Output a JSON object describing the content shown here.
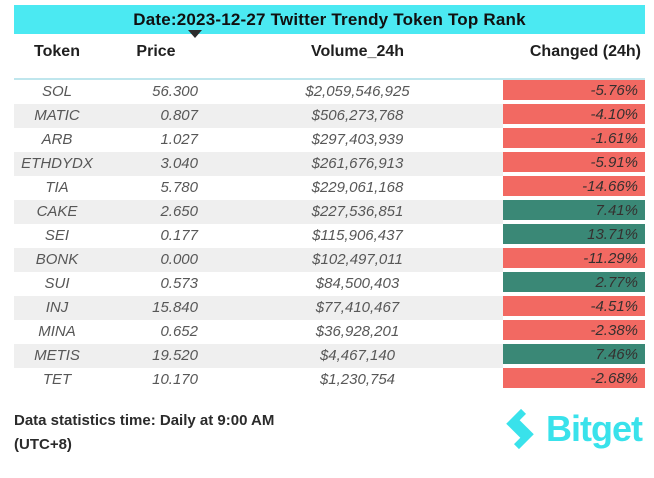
{
  "title": "Date:2023-12-27 Twitter Trendy Token Top Rank",
  "chart_data": {
    "type": "table",
    "title": "Date:2023-12-27 Twitter Trendy Token Top Rank",
    "columns": [
      "Token",
      "Price",
      "Volume_24h",
      "Changed (24h)"
    ],
    "sort": {
      "column": "Price",
      "direction": "descending",
      "icon": "▼"
    },
    "rows": [
      {
        "token": "SOL",
        "price": "56.300",
        "volume": "$2,059,546,925",
        "change": "-5.76%",
        "direction": "down"
      },
      {
        "token": "MATIC",
        "price": "0.807",
        "volume": "$506,273,768",
        "change": "-4.10%",
        "direction": "down"
      },
      {
        "token": "ARB",
        "price": "1.027",
        "volume": "$297,403,939",
        "change": "-1.61%",
        "direction": "down"
      },
      {
        "token": "ETHDYDX",
        "price": "3.040",
        "volume": "$261,676,913",
        "change": "-5.91%",
        "direction": "down"
      },
      {
        "token": "TIA",
        "price": "5.780",
        "volume": "$229,061,168",
        "change": "-14.66%",
        "direction": "down"
      },
      {
        "token": "CAKE",
        "price": "2.650",
        "volume": "$227,536,851",
        "change": "7.41%",
        "direction": "up"
      },
      {
        "token": "SEI",
        "price": "0.177",
        "volume": "$115,906,437",
        "change": "13.71%",
        "direction": "up"
      },
      {
        "token": "BONK",
        "price": "0.000",
        "volume": "$102,497,011",
        "change": "-11.29%",
        "direction": "down"
      },
      {
        "token": "SUI",
        "price": "0.573",
        "volume": "$84,500,403",
        "change": "2.77%",
        "direction": "up"
      },
      {
        "token": "INJ",
        "price": "15.840",
        "volume": "$77,410,467",
        "change": "-4.51%",
        "direction": "down"
      },
      {
        "token": "MINA",
        "price": "0.652",
        "volume": "$36,928,201",
        "change": "-2.38%",
        "direction": "down"
      },
      {
        "token": "METIS",
        "price": "19.520",
        "volume": "$4,467,140",
        "change": "7.46%",
        "direction": "up"
      },
      {
        "token": "TET",
        "price": "10.170",
        "volume": "$1,230,754",
        "change": "-2.68%",
        "direction": "down"
      }
    ]
  },
  "footer": {
    "note_line1": "Data statistics time: Daily at 9:00 AM",
    "note_line2": "(UTC+8)",
    "brand": "Bitget",
    "brand_icon": "bitget-logo-icon"
  },
  "colors": {
    "banner_cyan": "#4BE9F2",
    "positive_green": "#3A8876",
    "negative_red": "#F26962",
    "stripe_gray": "#EFEFEF",
    "header_underline": "#BFE6ED",
    "brand_cyan": "#39E2EB"
  }
}
